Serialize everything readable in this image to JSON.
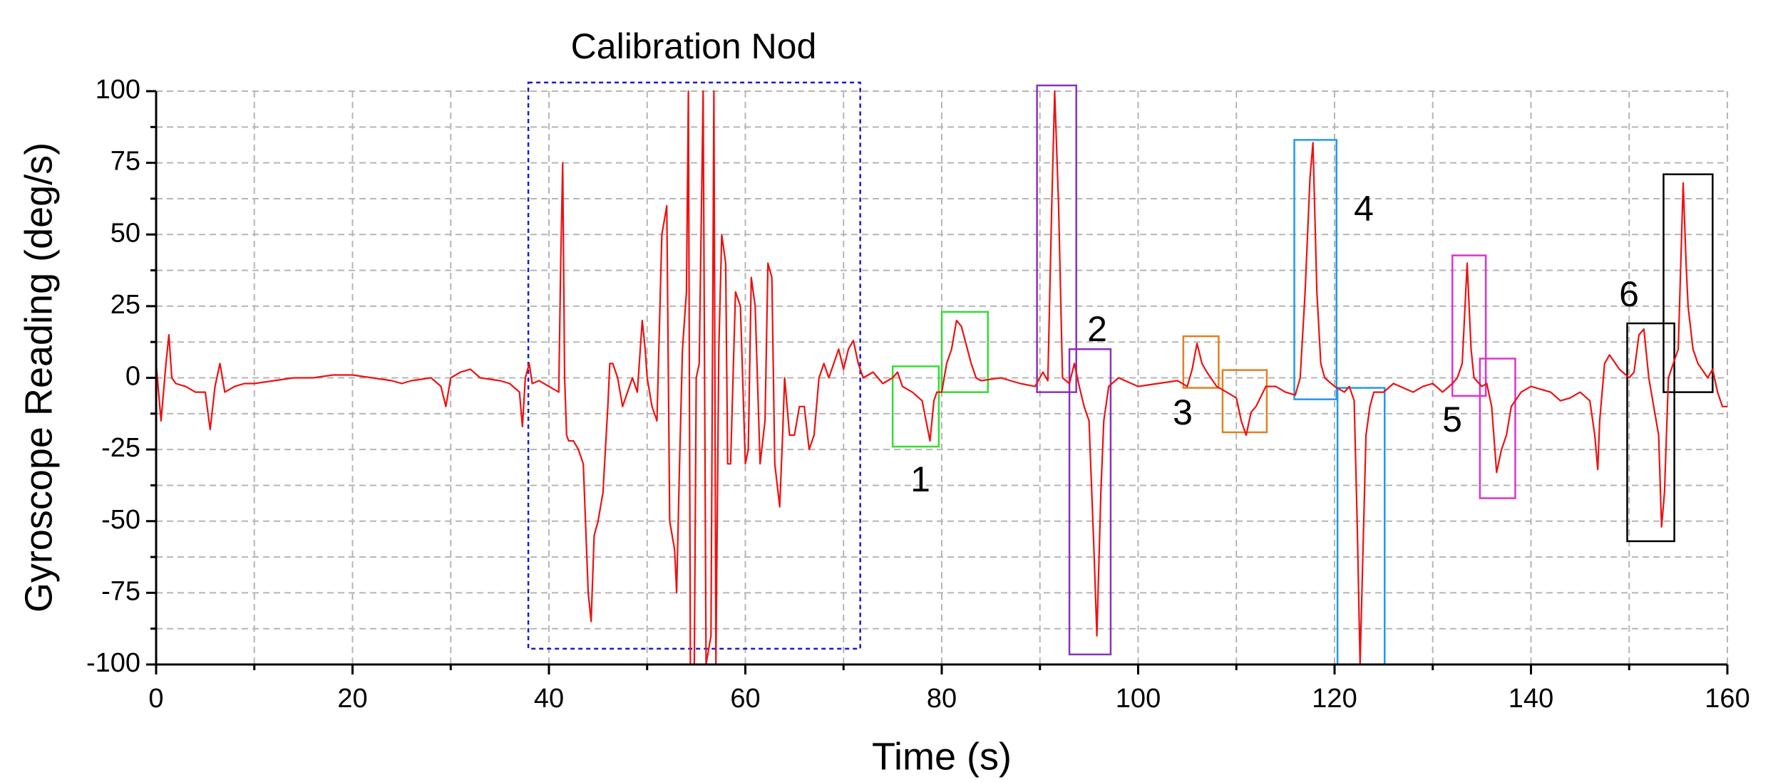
{
  "chart_data": {
    "type": "line",
    "xlabel": "Time (s)",
    "ylabel": "Gyroscope Reading (deg/s)",
    "color": "#ee1111",
    "xlim": [
      0,
      160
    ],
    "xticks": [
      0,
      20,
      40,
      60,
      80,
      100,
      120,
      140,
      160
    ],
    "xminorticks": [
      10,
      30,
      50,
      70,
      90,
      110,
      130,
      150
    ],
    "ylim": [
      -100,
      100
    ],
    "yticks": [
      -100,
      -75,
      -50,
      -25,
      0,
      25,
      50,
      75,
      100
    ],
    "yminorticks": [
      -87.5,
      -62.5,
      -37.5,
      -12.5,
      12.5,
      37.5,
      62.5,
      87.5
    ],
    "grid": true,
    "x": [
      0,
      0.5,
      1,
      1.3,
      1.6,
      2,
      3,
      4,
      4.5,
      5,
      5.5,
      6,
      6.5,
      7,
      8,
      9,
      10,
      12,
      14,
      16,
      18,
      20,
      22,
      24,
      25,
      26,
      28,
      29,
      29.5,
      30,
      31,
      32,
      33,
      35,
      36,
      37,
      37.3,
      37.6,
      38,
      38.3,
      39,
      40,
      40.5,
      41,
      41.2,
      41.4,
      41.6,
      41.8,
      42,
      42.5,
      43,
      43.5,
      44,
      44.3,
      44.6,
      45,
      45.5,
      46,
      46.2,
      46.5,
      47,
      47.5,
      48,
      48.5,
      49,
      49.5,
      49.8,
      50,
      50.5,
      51,
      51.5,
      52,
      52.3,
      52.8,
      53,
      53.3,
      53.6,
      54,
      54.2,
      54.4,
      54.8,
      55,
      55.3,
      55.7,
      56,
      56.5,
      56.8,
      57,
      57.3,
      57.6,
      58,
      58.2,
      58.5,
      59,
      59.5,
      60,
      60.3,
      60.6,
      61,
      61.5,
      62,
      62.3,
      62.7,
      63,
      63.5,
      63.8,
      64,
      64.5,
      65,
      65.5,
      66,
      66.5,
      67,
      67.5,
      68,
      68.5,
      69,
      69.5,
      70,
      70.5,
      71,
      71.5,
      72,
      73,
      74,
      75,
      75.5,
      76,
      77,
      78,
      78.8,
      79.2,
      79.5,
      80,
      80.5,
      81,
      81.5,
      82,
      83,
      83.5,
      84,
      86,
      88,
      89.5,
      90.3,
      90.8,
      91.2,
      91.5,
      91.9,
      92.3,
      93,
      93.5,
      94,
      94.5,
      95,
      95.5,
      95.8,
      96.2,
      96.5,
      97,
      98,
      100,
      102,
      104,
      105,
      105.5,
      106,
      106.5,
      107,
      108,
      109,
      110,
      110.5,
      111,
      111.5,
      112,
      113,
      114,
      115,
      116,
      116.5,
      117,
      117.5,
      117.8,
      118.2,
      118.6,
      119,
      120,
      121,
      121.5,
      122,
      122.3,
      122.6,
      122.9,
      123.2,
      123.6,
      124,
      125,
      126,
      128,
      129,
      130,
      131,
      132,
      132.5,
      133,
      133.5,
      133.9,
      134.2,
      135,
      135.5,
      136,
      136.5,
      137,
      137.5,
      138,
      139,
      140,
      142,
      143,
      144,
      145,
      146,
      146.5,
      146.8,
      147,
      147.5,
      148,
      149,
      150,
      150.5,
      151,
      151.5,
      152,
      152.5,
      153,
      153.3,
      153.6,
      154,
      154.5,
      155,
      155.5,
      155.8,
      156,
      156.5,
      157,
      158,
      158.5,
      159,
      159.5,
      160
    ],
    "values": [
      5,
      -15,
      5,
      15,
      0,
      -2,
      -3,
      -5,
      -5,
      -5,
      -18,
      -3,
      5,
      -5,
      -3,
      -2,
      -2,
      -1,
      0,
      0,
      1,
      1,
      0,
      -1,
      -2,
      -1,
      0,
      -3,
      -10,
      0,
      2,
      3,
      0,
      -1,
      -2,
      -5,
      -17,
      0,
      5,
      -2,
      -1,
      -3,
      -4,
      -5,
      40,
      75,
      0,
      -20,
      -22,
      -22,
      -25,
      -30,
      -75,
      -85,
      -55,
      -50,
      -40,
      -10,
      5,
      5,
      0,
      -10,
      -5,
      0,
      -5,
      20,
      10,
      0,
      -10,
      -15,
      50,
      60,
      -50,
      -60,
      -75,
      -30,
      10,
      30,
      100,
      -100,
      -100,
      0,
      5,
      100,
      -100,
      -90,
      100,
      -100,
      10,
      50,
      40,
      -30,
      -30,
      30,
      25,
      -30,
      -25,
      35,
      25,
      -30,
      -15,
      40,
      35,
      -30,
      -45,
      -20,
      0,
      -20,
      -20,
      -10,
      -10,
      -25,
      -20,
      0,
      5,
      0,
      5,
      10,
      3,
      10,
      13,
      5,
      0,
      2,
      -2,
      0,
      2,
      -3,
      -5,
      -8,
      -22,
      -8,
      -5,
      -5,
      5,
      10,
      20,
      18,
      5,
      0,
      -1,
      0,
      -2,
      -3,
      2,
      -1,
      60,
      100,
      60,
      0,
      -2,
      5,
      -3,
      -10,
      -15,
      -60,
      -90,
      -40,
      -15,
      -3,
      0,
      -3,
      -2,
      -1,
      -3,
      3,
      12,
      5,
      2,
      -3,
      -5,
      -7,
      -15,
      -20,
      -12,
      -10,
      -3,
      -3,
      -5,
      -6,
      0,
      30,
      70,
      82,
      30,
      5,
      0,
      -3,
      -5,
      -3,
      -8,
      -50,
      -100,
      -60,
      -20,
      -10,
      -5,
      -5,
      -2,
      -5,
      -3,
      -2,
      -5,
      -2,
      0,
      5,
      40,
      10,
      0,
      -3,
      -2,
      -10,
      -33,
      -25,
      -20,
      -10,
      -5,
      -3,
      -5,
      -8,
      -7,
      -5,
      -8,
      -20,
      -32,
      -15,
      5,
      8,
      3,
      0,
      2,
      15,
      17,
      0,
      -10,
      -20,
      -52,
      -40,
      0,
      5,
      10,
      68,
      40,
      25,
      10,
      5,
      0,
      3,
      -5,
      -10,
      -10
    ],
    "annotations": [
      {
        "label": "Calibration Nod",
        "color": "#1a1acc",
        "line_style": "dotted",
        "boxes": [
          {
            "x": [
              37.9,
              71.7
            ],
            "y": [
              -94.5,
              103
            ]
          }
        ]
      },
      {
        "label": "1",
        "color": "#33dd33",
        "line_style": "solid",
        "boxes": [
          {
            "x": [
              75,
              79.7
            ],
            "y": [
              -24,
              4
            ]
          },
          {
            "x": [
              80,
              84.7
            ],
            "y": [
              -5,
              23
            ]
          }
        ]
      },
      {
        "label": "2",
        "color": "#8833bb",
        "line_style": "solid",
        "boxes": [
          {
            "x": [
              89.7,
              93.7
            ],
            "y": [
              -5,
              102
            ]
          },
          {
            "x": [
              93,
              97.2
            ],
            "y": [
              -96.5,
              10
            ]
          }
        ]
      },
      {
        "label": "3",
        "color": "#e08020",
        "line_style": "solid",
        "boxes": [
          {
            "x": [
              104.6,
              108.2
            ],
            "y": [
              -3.5,
              14.5
            ]
          },
          {
            "x": [
              108.6,
              113.1
            ],
            "y": [
              -19,
              2.7
            ]
          }
        ]
      },
      {
        "label": "4",
        "color": "#2299ee",
        "line_style": "solid",
        "boxes": [
          {
            "x": [
              115.9,
              120.2
            ],
            "y": [
              -7.5,
              83
            ]
          },
          {
            "x": [
              120.3,
              125.1
            ],
            "y": [
              -100,
              -3.5
            ]
          }
        ]
      },
      {
        "label": "5",
        "color": "#dd33cc",
        "line_style": "solid",
        "boxes": [
          {
            "x": [
              132,
              135.4
            ],
            "y": [
              -6.3,
              42.7
            ]
          },
          {
            "x": [
              134.8,
              138.4
            ],
            "y": [
              -42,
              6.7
            ]
          }
        ]
      },
      {
        "label": "6",
        "color": "#000000",
        "line_style": "solid",
        "boxes": [
          {
            "x": [
              149.8,
              154.6
            ],
            "y": [
              -57,
              19
            ]
          },
          {
            "x": [
              153.5,
              158.5
            ],
            "y": [
              -5,
              71
            ]
          }
        ]
      }
    ]
  }
}
